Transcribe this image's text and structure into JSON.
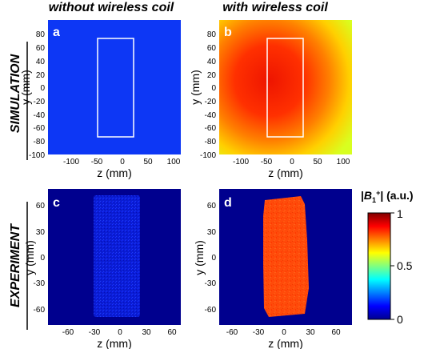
{
  "figure": {
    "column_titles": [
      "without wireless coil",
      "with wireless coil"
    ],
    "row_titles": [
      "SIMULATION",
      "EXPERIMENT"
    ],
    "colorbar": {
      "title_prefix": "|",
      "title_symbol": "B",
      "title_sub": "1",
      "title_sup": "+",
      "title_suffix": "| (a.u.)",
      "ticks": [
        "1",
        "0.5",
        "0"
      ],
      "colormap": "jet"
    }
  },
  "chart_data": [
    {
      "type": "heatmap",
      "panel": "a",
      "xlabel": "z (mm)",
      "ylabel": "y (mm)",
      "xlim": [
        -140,
        120
      ],
      "ylim": [
        -100,
        100
      ],
      "xticks": [
        "-100",
        "-50",
        "0",
        "50",
        "100"
      ],
      "yticks": [
        "80",
        "60",
        "40",
        "20",
        "0",
        "-20",
        "-40",
        "-60",
        "-80",
        "-100"
      ],
      "field_level": 0.08,
      "phantom_outline": {
        "z": [
          -45,
          22
        ],
        "y": [
          -75,
          72
        ]
      }
    },
    {
      "type": "heatmap",
      "panel": "b",
      "xlabel": "z (mm)",
      "ylabel": "y (mm)",
      "xlim": [
        -140,
        120
      ],
      "ylim": [
        -100,
        100
      ],
      "xticks": [
        "-100",
        "-50",
        "0",
        "50",
        "100"
      ],
      "yticks": [
        "80",
        "60",
        "40",
        "20",
        "0",
        "-20",
        "-40",
        "-60",
        "-80",
        "-100"
      ],
      "field_level_center": 0.97,
      "field_level_corners": 0.62,
      "phantom_outline": {
        "z": [
          -45,
          22
        ],
        "y": [
          -75,
          72
        ]
      }
    },
    {
      "type": "heatmap",
      "panel": "c",
      "xlabel": "z (mm)",
      "ylabel": "y (mm)",
      "xlim": [
        -80,
        80
      ],
      "ylim": [
        -70,
        70
      ],
      "xticks": [
        "-60",
        "-30",
        "0",
        "30",
        "60"
      ],
      "yticks": [
        "60",
        "30",
        "0",
        "-30",
        "-60"
      ],
      "field_level": 0.1,
      "phantom_extent": {
        "z": [
          -30,
          25
        ],
        "y": [
          -68,
          67
        ]
      }
    },
    {
      "type": "heatmap",
      "panel": "d",
      "xlabel": "z (mm)",
      "ylabel": "y (mm)",
      "xlim": [
        -80,
        80
      ],
      "ylim": [
        -70,
        70
      ],
      "xticks": [
        "-60",
        "-30",
        "0",
        "30",
        "60"
      ],
      "yticks": [
        "60",
        "30",
        "0",
        "-30",
        "-60"
      ],
      "field_level": 0.86,
      "phantom_extent": {
        "z": [
          -30,
          25
        ],
        "y": [
          -68,
          67
        ]
      }
    }
  ]
}
